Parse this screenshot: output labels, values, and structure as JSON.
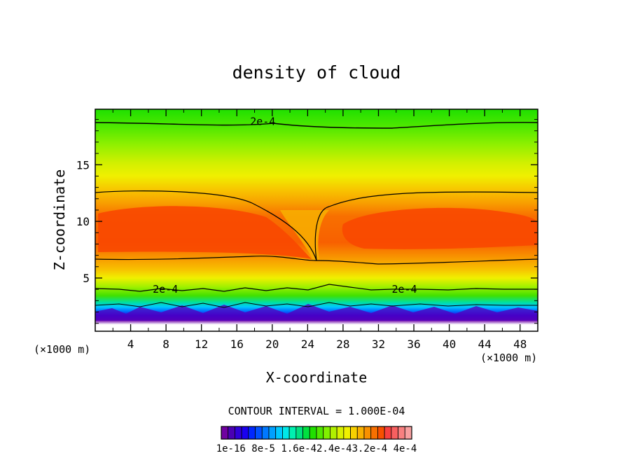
{
  "chart_data": {
    "type": "heatmap",
    "title": "density of cloud",
    "xlabel": "X-coordinate",
    "ylabel": "Z-coordinate",
    "x_unit_left": "(×1000 m)",
    "x_unit_right": "(×1000 m)",
    "xlim": [
      0,
      50
    ],
    "ylim": [
      0.3,
      19.9
    ],
    "x_ticks": [
      4,
      8,
      12,
      16,
      20,
      24,
      28,
      32,
      36,
      40,
      44,
      48
    ],
    "y_ticks": [
      5,
      10,
      15
    ],
    "contour_interval_label": "CONTOUR INTERVAL = 1.000E-04",
    "contour_label": "2e-4",
    "contour_label_positions": [
      [
        17.5,
        18.5
      ],
      [
        6.5,
        3.7
      ],
      [
        33.5,
        3.7
      ]
    ],
    "colorbar_labels": [
      "1e-16",
      "8e-5",
      "1.6e-4",
      "2.4e-4",
      "3.2e-4",
      "4e-4"
    ],
    "colorbar_label_text": "1e-16 8e-5 1.6e-42.4e-43.2e-4 4e-4",
    "colorbar_colors": [
      "#7000a0",
      "#4a00b4",
      "#3000d8",
      "#1a00f0",
      "#0028ff",
      "#0050ff",
      "#0078ff",
      "#00a0ff",
      "#00c8ff",
      "#00e8e8",
      "#00f0b0",
      "#00e080",
      "#00e040",
      "#20e000",
      "#50e800",
      "#80f000",
      "#b0f000",
      "#d8f000",
      "#f0f000",
      "#f8d000",
      "#f8b000",
      "#f89000",
      "#f87000",
      "#f85000",
      "#f84040",
      "#f86060",
      "#f88080",
      "#f8a0a0"
    ],
    "colors": {
      "low_band": "#6a00a8",
      "mid_low": "#00e0e0",
      "green": "#30e000",
      "yellow": "#f0f000",
      "orange": "#f8b000",
      "core": "#f85000"
    }
  }
}
